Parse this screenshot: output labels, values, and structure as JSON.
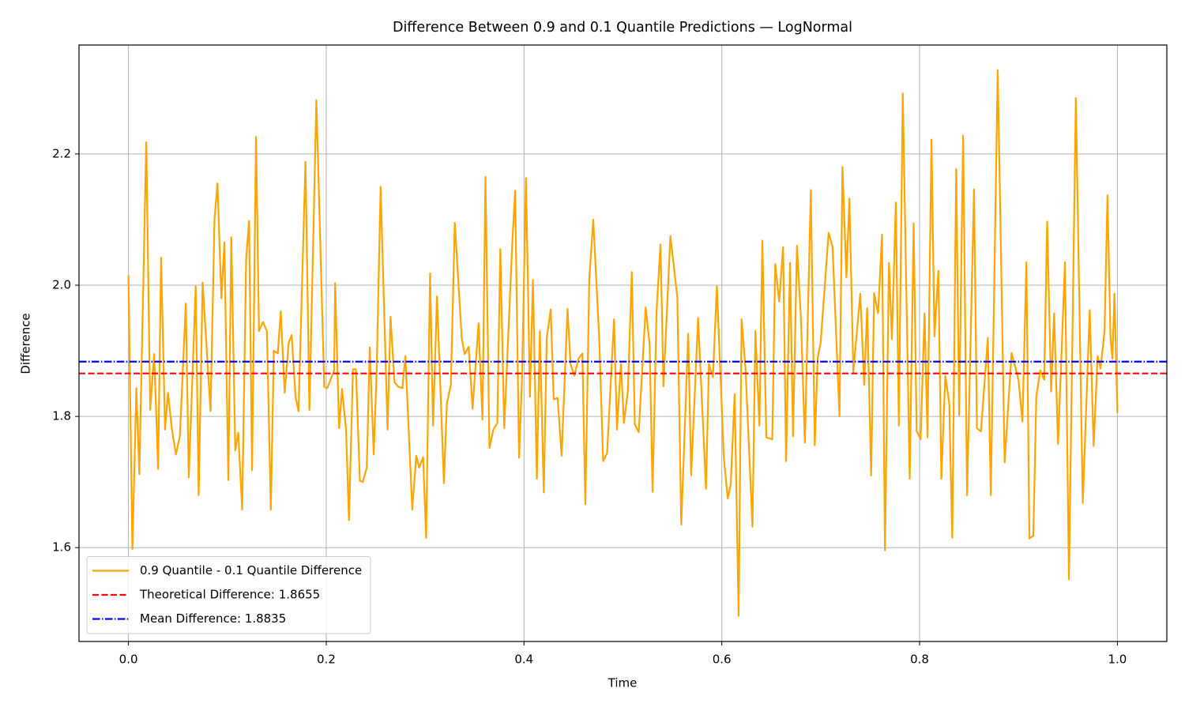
{
  "chart_data": {
    "type": "line",
    "title": "Difference Between 0.9 and 0.1 Quantile Predictions — LogNormal",
    "x_label": "Time",
    "y_label": "Difference",
    "xlim": [
      -0.05,
      1.05
    ],
    "ylim": [
      1.457,
      2.366
    ],
    "xticks": [
      {
        "value": 0,
        "label": "0.0"
      },
      {
        "value": 0.2,
        "label": "0.2"
      },
      {
        "value": 0.4,
        "label": "0.4"
      },
      {
        "value": 0.6,
        "label": "0.6"
      },
      {
        "value": 0.8,
        "label": "0.8"
      },
      {
        "value": 1,
        "label": "1.0"
      }
    ],
    "yticks": [
      1.6,
      1.8,
      {
        "value": 2,
        "label": "2.0"
      },
      2.2
    ],
    "grid": true,
    "legend_loc": "lower left",
    "x": [
      0.0,
      0.004,
      0.008,
      0.011,
      0.018,
      0.022,
      0.026,
      0.03,
      0.033,
      0.037,
      0.04,
      0.044,
      0.048,
      0.052,
      0.058,
      0.061,
      0.068,
      0.071,
      0.075,
      0.083,
      0.087,
      0.09,
      0.094,
      0.097,
      0.101,
      0.104,
      0.108,
      0.111,
      0.115,
      0.119,
      0.122,
      0.125,
      0.129,
      0.132,
      0.136,
      0.14,
      0.144,
      0.147,
      0.151,
      0.154,
      0.158,
      0.162,
      0.165,
      0.169,
      0.172,
      0.179,
      0.183,
      0.19,
      0.198,
      0.201,
      0.208,
      0.209,
      0.213,
      0.216,
      0.22,
      0.223,
      0.227,
      0.23,
      0.234,
      0.237,
      0.241,
      0.244,
      0.248,
      0.251,
      0.255,
      0.262,
      0.265,
      0.269,
      0.273,
      0.277,
      0.28,
      0.287,
      0.291,
      0.294,
      0.298,
      0.301,
      0.305,
      0.308,
      0.312,
      0.319,
      0.322,
      0.326,
      0.33,
      0.337,
      0.34,
      0.344,
      0.348,
      0.354,
      0.358,
      0.361,
      0.365,
      0.369,
      0.373,
      0.376,
      0.38,
      0.388,
      0.391,
      0.395,
      0.398,
      0.402,
      0.406,
      0.409,
      0.413,
      0.416,
      0.42,
      0.423,
      0.427,
      0.43,
      0.434,
      0.438,
      0.444,
      0.447,
      0.451,
      0.455,
      0.459,
      0.462,
      0.466,
      0.47,
      0.476,
      0.48,
      0.484,
      0.491,
      0.494,
      0.498,
      0.501,
      0.505,
      0.509,
      0.512,
      0.516,
      0.523,
      0.527,
      0.53,
      0.534,
      0.538,
      0.541,
      0.548,
      0.555,
      0.559,
      0.566,
      0.569,
      0.576,
      0.584,
      0.587,
      0.591,
      0.595,
      0.602,
      0.606,
      0.609,
      0.613,
      0.617,
      0.62,
      0.624,
      0.631,
      0.634,
      0.638,
      0.641,
      0.645,
      0.651,
      0.654,
      0.658,
      0.662,
      0.665,
      0.669,
      0.672,
      0.676,
      0.68,
      0.684,
      0.69,
      0.694,
      0.697,
      0.7,
      0.708,
      0.712,
      0.719,
      0.722,
      0.726,
      0.729,
      0.733,
      0.74,
      0.744,
      0.747,
      0.751,
      0.754,
      0.758,
      0.762,
      0.765,
      0.769,
      0.772,
      0.776,
      0.779,
      0.783,
      0.79,
      0.794,
      0.797,
      0.801,
      0.805,
      0.808,
      0.812,
      0.815,
      0.819,
      0.822,
      0.826,
      0.83,
      0.833,
      0.837,
      0.84,
      0.844,
      0.848,
      0.855,
      0.858,
      0.862,
      0.869,
      0.872,
      0.879,
      0.886,
      0.893,
      0.9,
      0.904,
      0.908,
      0.911,
      0.915,
      0.918,
      0.922,
      0.926,
      0.929,
      0.933,
      0.936,
      0.94,
      0.947,
      0.951,
      0.958,
      0.965,
      0.972,
      0.976,
      0.98,
      0.983,
      0.987,
      0.99,
      0.993,
      0.995,
      0.997,
      1.0
    ],
    "series": [
      {
        "name": "0.9 Quantile - 0.1 Quantile Difference",
        "color": "#ffa500",
        "values": [
          2.015,
          1.598,
          1.843,
          1.712,
          2.218,
          1.81,
          1.895,
          1.72,
          2.042,
          1.78,
          1.836,
          1.78,
          1.742,
          1.77,
          1.972,
          1.707,
          1.998,
          1.68,
          2.004,
          1.808,
          2.1,
          2.155,
          1.98,
          2.065,
          1.703,
          2.073,
          1.748,
          1.775,
          1.658,
          2.04,
          2.098,
          1.718,
          2.226,
          1.93,
          1.944,
          1.93,
          1.658,
          1.9,
          1.896,
          1.96,
          1.836,
          1.912,
          1.924,
          1.83,
          1.808,
          2.188,
          1.81,
          2.282,
          1.845,
          1.843,
          1.87,
          2.003,
          1.782,
          1.842,
          1.78,
          1.642,
          1.872,
          1.872,
          1.702,
          1.7,
          1.722,
          1.905,
          1.742,
          1.87,
          2.15,
          1.78,
          1.952,
          1.852,
          1.845,
          1.843,
          1.892,
          1.658,
          1.74,
          1.722,
          1.738,
          1.615,
          2.018,
          1.786,
          1.983,
          1.698,
          1.82,
          1.848,
          2.095,
          1.92,
          1.895,
          1.906,
          1.812,
          1.942,
          1.795,
          2.165,
          1.752,
          1.78,
          1.79,
          2.055,
          1.782,
          2.06,
          2.144,
          1.737,
          1.86,
          2.163,
          1.83,
          2.008,
          1.705,
          1.93,
          1.684,
          1.92,
          1.963,
          1.826,
          1.828,
          1.74,
          1.964,
          1.88,
          1.862,
          1.888,
          1.896,
          1.666,
          2.01,
          2.1,
          1.92,
          1.732,
          1.744,
          1.948,
          1.78,
          1.88,
          1.79,
          1.838,
          2.02,
          1.788,
          1.776,
          1.966,
          1.91,
          1.685,
          1.96,
          2.062,
          1.846,
          2.075,
          1.982,
          1.635,
          1.926,
          1.71,
          1.95,
          1.69,
          1.88,
          1.86,
          1.998,
          1.738,
          1.675,
          1.696,
          1.834,
          1.496,
          1.948,
          1.872,
          1.632,
          1.93,
          1.786,
          2.068,
          1.768,
          1.765,
          2.032,
          1.975,
          2.058,
          1.732,
          2.034,
          1.77,
          2.06,
          1.95,
          1.76,
          2.145,
          1.756,
          1.89,
          1.913,
          2.08,
          2.058,
          1.8,
          2.18,
          2.012,
          2.132,
          1.868,
          1.987,
          1.848,
          1.965,
          1.71,
          1.988,
          1.957,
          2.077,
          1.596,
          2.034,
          1.918,
          2.126,
          1.786,
          2.292,
          1.705,
          2.094,
          1.778,
          1.765,
          1.957,
          1.768,
          2.222,
          1.922,
          2.022,
          1.705,
          1.862,
          1.82,
          1.615,
          2.177,
          1.802,
          2.228,
          1.68,
          2.146,
          1.782,
          1.777,
          1.92,
          1.68,
          2.328,
          1.73,
          1.897,
          1.856,
          1.792,
          2.035,
          1.614,
          1.618,
          1.83,
          1.87,
          1.856,
          2.097,
          1.838,
          1.957,
          1.758,
          2.035,
          1.552,
          2.285,
          1.668,
          1.962,
          1.755,
          1.892,
          1.873,
          1.93,
          2.137,
          1.92,
          1.888,
          1.987,
          1.805
        ]
      }
    ],
    "hlines": [
      {
        "name": "Theoretical Difference: 1.8655",
        "value": 1.8655,
        "color": "#ff0000",
        "style": "dashed"
      },
      {
        "name": "Mean Difference: 1.8835",
        "value": 1.8835,
        "color": "#0000ff",
        "style": "dashdot"
      }
    ]
  }
}
